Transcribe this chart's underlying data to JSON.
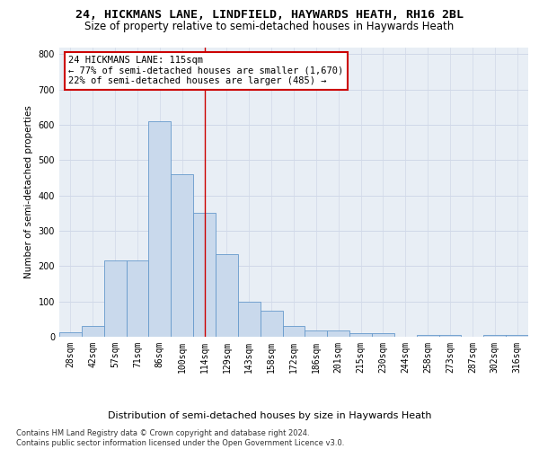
{
  "title_line1": "24, HICKMANS LANE, LINDFIELD, HAYWARDS HEATH, RH16 2BL",
  "title_line2": "Size of property relative to semi-detached houses in Haywards Heath",
  "xlabel": "Distribution of semi-detached houses by size in Haywards Heath",
  "ylabel": "Number of semi-detached properties",
  "footnote": "Contains HM Land Registry data © Crown copyright and database right 2024.\nContains public sector information licensed under the Open Government Licence v3.0.",
  "categories": [
    "28sqm",
    "42sqm",
    "57sqm",
    "71sqm",
    "86sqm",
    "100sqm",
    "114sqm",
    "129sqm",
    "143sqm",
    "158sqm",
    "172sqm",
    "186sqm",
    "201sqm",
    "215sqm",
    "230sqm",
    "244sqm",
    "258sqm",
    "273sqm",
    "287sqm",
    "302sqm",
    "316sqm"
  ],
  "values": [
    12,
    30,
    215,
    215,
    610,
    460,
    350,
    235,
    100,
    75,
    30,
    18,
    18,
    10,
    10,
    0,
    5,
    5,
    0,
    5,
    5
  ],
  "bar_color": "#c9d9ec",
  "bar_edge_color": "#6699cc",
  "vline_x": 6,
  "vline_color": "#cc0000",
  "annotation_text": "24 HICKMANS LANE: 115sqm\n← 77% of semi-detached houses are smaller (1,670)\n22% of semi-detached houses are larger (485) →",
  "annotation_box_color": "#ffffff",
  "annotation_box_edge": "#cc0000",
  "ylim": [
    0,
    820
  ],
  "yticks": [
    0,
    100,
    200,
    300,
    400,
    500,
    600,
    700,
    800
  ],
  "background_color": "#ffffff",
  "grid_color": "#d0d8e8",
  "title1_fontsize": 9.5,
  "title2_fontsize": 8.5,
  "xlabel_fontsize": 8,
  "ylabel_fontsize": 7.5,
  "tick_fontsize": 7,
  "annot_fontsize": 7.5,
  "footnote_fontsize": 6
}
